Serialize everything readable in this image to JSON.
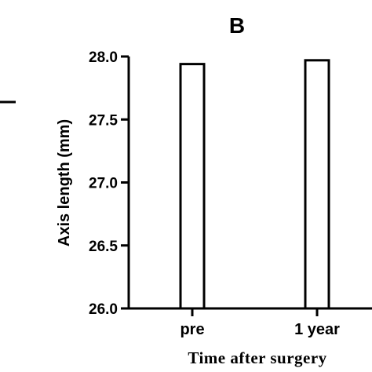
{
  "chart_data": {
    "type": "bar",
    "panel_label": "B",
    "categories": [
      "pre",
      "1 year"
    ],
    "values": [
      27.94,
      27.97
    ],
    "ylabel": "Axis length (mm)",
    "xlabel": "Time after surgery",
    "ylim": [
      26.0,
      28.0
    ],
    "yticks": [
      "26.0",
      "26.5",
      "27.0",
      "27.5",
      "28.0"
    ],
    "ytick_values": [
      26.0,
      26.5,
      27.0,
      27.5,
      28.0
    ],
    "grid": false,
    "bar_fill": "#ffffff",
    "bar_stroke": "#000000"
  }
}
